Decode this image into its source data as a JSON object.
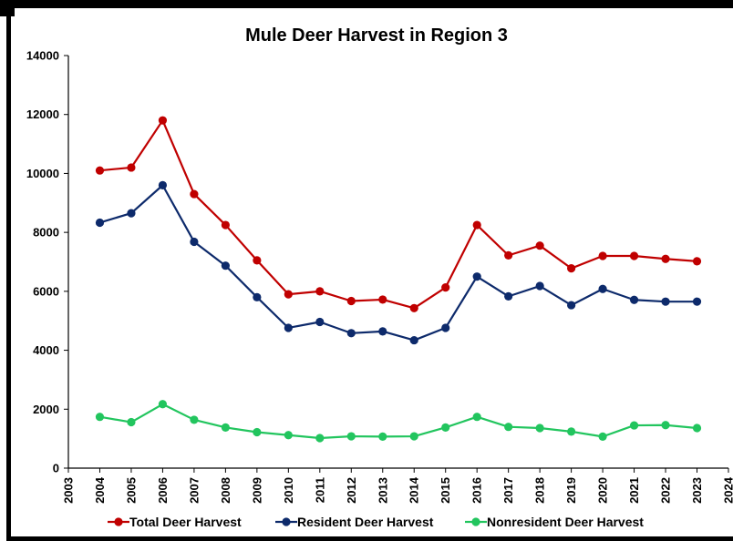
{
  "chart_data": {
    "type": "line",
    "title": "Mule Deer Harvest in Region 3",
    "xlabel": "",
    "ylabel": "",
    "x": [
      2004,
      2005,
      2006,
      2007,
      2008,
      2009,
      2010,
      2011,
      2012,
      2013,
      2014,
      2015,
      2016,
      2017,
      2018,
      2019,
      2020,
      2021,
      2022,
      2023
    ],
    "xlim": [
      2003,
      2024
    ],
    "ylim": [
      0,
      14000
    ],
    "x_ticks": [
      "2003",
      "2004",
      "2005",
      "2006",
      "2007",
      "2008",
      "2009",
      "2010",
      "2011",
      "2012",
      "2013",
      "2014",
      "2015",
      "2016",
      "2017",
      "2018",
      "2019",
      "2020",
      "2021",
      "2022",
      "2023",
      "2024"
    ],
    "y_ticks": [
      "0",
      "2000",
      "4000",
      "6000",
      "8000",
      "10000",
      "12000",
      "14000"
    ],
    "grid": false,
    "legend_position": "bottom",
    "series": [
      {
        "name": "Total Deer Harvest",
        "color": "#c00000",
        "values": [
          10100,
          10200,
          11800,
          9300,
          8250,
          7050,
          5900,
          6000,
          5670,
          5720,
          5430,
          6130,
          8250,
          7220,
          7550,
          6780,
          7200,
          7200,
          7100,
          7020
        ]
      },
      {
        "name": "Resident Deer Harvest",
        "color": "#0d2a6b",
        "values": [
          8330,
          8650,
          9600,
          7680,
          6870,
          5800,
          4760,
          4960,
          4580,
          4640,
          4340,
          4760,
          6500,
          5830,
          6180,
          5530,
          6080,
          5710,
          5650,
          5650
        ]
      },
      {
        "name": "Nonresident Deer Harvest",
        "color": "#22c55e",
        "values": [
          1740,
          1560,
          2170,
          1640,
          1380,
          1220,
          1120,
          1020,
          1080,
          1070,
          1080,
          1380,
          1740,
          1400,
          1360,
          1240,
          1070,
          1450,
          1460,
          1360
        ]
      }
    ]
  }
}
